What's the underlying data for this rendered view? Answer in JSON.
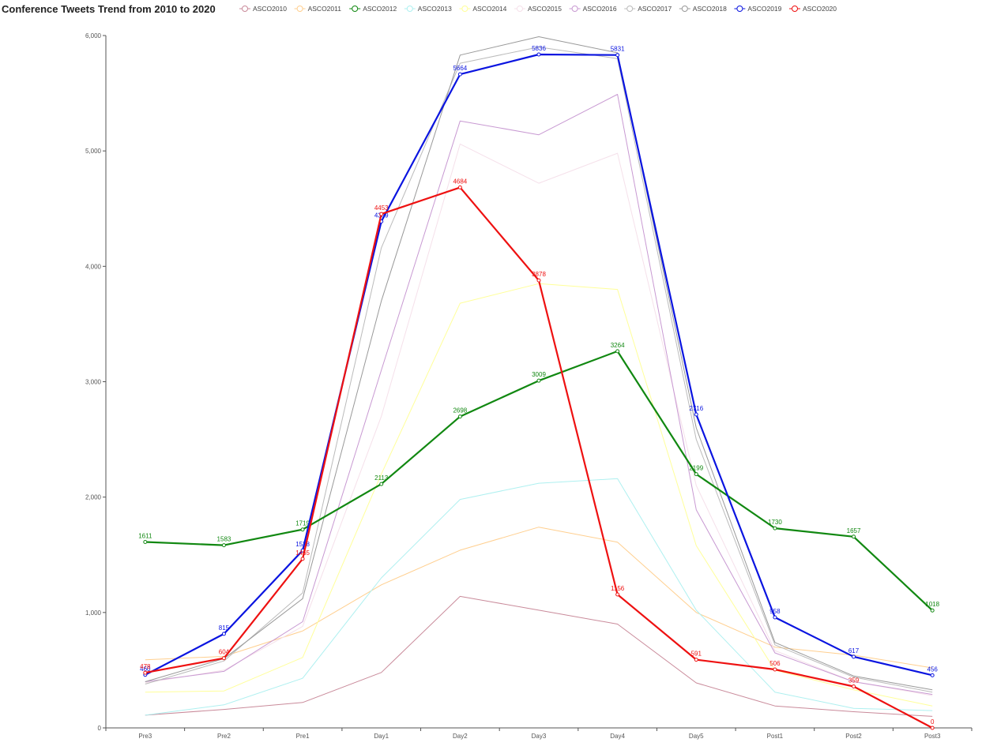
{
  "chart_data": {
    "type": "line",
    "title": "Conference Tweets Trend from 2010 to 2020",
    "xlabel": "",
    "ylabel": "",
    "categories": [
      "Pre3",
      "Pre2",
      "Pre1",
      "Day1",
      "Day2",
      "Day3",
      "Day4",
      "Day5",
      "Post1",
      "Post2",
      "Post3"
    ],
    "ylim": [
      0,
      6000
    ],
    "yticks": [
      0,
      1000,
      2000,
      3000,
      4000,
      5000,
      6000
    ],
    "ytick_labels": [
      "0",
      "1,000",
      "2,000",
      "3,000",
      "4,000",
      "5,000",
      "6,000"
    ],
    "legend_position": "top",
    "grid": false,
    "series": [
      {
        "name": "ASCO2010",
        "color": "#c98a9a",
        "highlight": false,
        "values": [
          110,
          160,
          220,
          480,
          1140,
          1020,
          900,
          390,
          190,
          140,
          100
        ]
      },
      {
        "name": "ASCO2011",
        "color": "#ffcf8f",
        "highlight": false,
        "values": [
          590,
          620,
          840,
          1240,
          1540,
          1740,
          1610,
          1000,
          700,
          630,
          520
        ]
      },
      {
        "name": "ASCO2012",
        "color": "#118811",
        "highlight": true,
        "values": [
          1611,
          1583,
          1719,
          2113,
          2698,
          3009,
          3264,
          2199,
          1730,
          1657,
          1018
        ]
      },
      {
        "name": "ASCO2013",
        "color": "#aef0f0",
        "highlight": false,
        "values": [
          110,
          200,
          430,
          1300,
          1980,
          2120,
          2160,
          1020,
          310,
          170,
          150
        ]
      },
      {
        "name": "ASCO2014",
        "color": "#ffff99",
        "highlight": false,
        "values": [
          310,
          320,
          610,
          2200,
          3680,
          3850,
          3800,
          1580,
          500,
          330,
          190
        ]
      },
      {
        "name": "ASCO2015",
        "color": "#f5e0ea",
        "highlight": false,
        "values": [
          390,
          500,
          880,
          2700,
          5060,
          4720,
          4980,
          2100,
          670,
          400,
          280
        ]
      },
      {
        "name": "ASCO2016",
        "color": "#c899d2",
        "highlight": false,
        "values": [
          400,
          490,
          920,
          3100,
          5260,
          5140,
          5490,
          1890,
          650,
          400,
          290
        ]
      },
      {
        "name": "ASCO2017",
        "color": "#bbbbbb",
        "highlight": false,
        "values": [
          380,
          580,
          1170,
          4160,
          5760,
          5900,
          5800,
          2500,
          720,
          440,
          310
        ]
      },
      {
        "name": "ASCO2018",
        "color": "#999999",
        "highlight": false,
        "values": [
          400,
          600,
          1120,
          3700,
          5830,
          5990,
          5850,
          2600,
          740,
          450,
          330
        ]
      },
      {
        "name": "ASCO2019",
        "color": "#0a14e0",
        "highlight": true,
        "values": [
          460,
          815,
          1538,
          4389,
          5664,
          5836,
          5831,
          2716,
          958,
          617,
          456
        ]
      },
      {
        "name": "ASCO2020",
        "color": "#ee1111",
        "highlight": true,
        "values": [
          478,
          604,
          1465,
          4453,
          4684,
          3878,
          1156,
          591,
          506,
          359,
          0
        ]
      }
    ]
  }
}
